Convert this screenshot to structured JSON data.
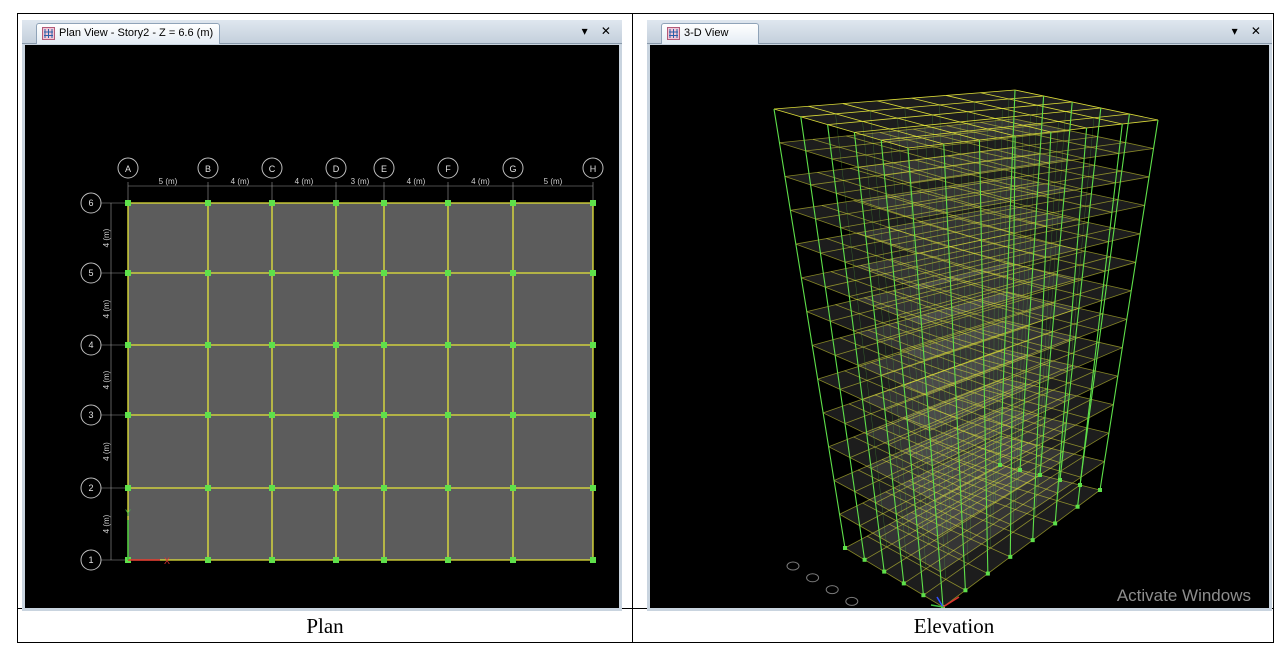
{
  "plan_window": {
    "title": "Plan View - Story2 - Z = 6.6 (m)",
    "controls": "▾ ✕",
    "grid_columns": [
      "A",
      "B",
      "C",
      "D",
      "E",
      "F",
      "G",
      "H"
    ],
    "column_spacings": [
      "5 (m)",
      "4 (m)",
      "4 (m)",
      "3 (m)",
      "4 (m)",
      "4 (m)",
      "5 (m)"
    ],
    "grid_rows": [
      "6",
      "5",
      "4",
      "3",
      "2",
      "1"
    ],
    "row_spacings": [
      "4 (m)",
      "4 (m)",
      "4 (m)",
      "4 (m)",
      "4 (m)"
    ],
    "axis_x": "X",
    "axis_y": "Y"
  },
  "view3d_window": {
    "title": "3-D View",
    "controls": "▾ ✕",
    "watermark": "Activate Windows",
    "stories": 13,
    "bays_x": 7,
    "bays_y": 5
  },
  "captions": {
    "left": "Plan",
    "right": "Elevation"
  },
  "colors": {
    "frame": "#e6e63a",
    "column": "#5ee04a",
    "slab": "#5c5c5c",
    "background": "#000000"
  }
}
